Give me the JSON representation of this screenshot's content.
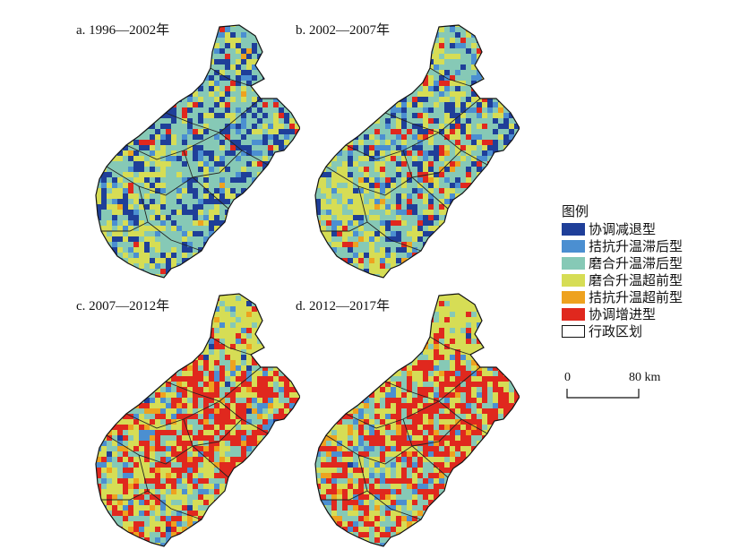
{
  "panels": [
    {
      "label": "a. 1996—2002年",
      "palette": [
        "#1f3f99",
        "#4b8fd1",
        "#86c9b6",
        "#d6dd55",
        "#eea21f",
        "#e0281e"
      ],
      "weights": [
        0.25,
        0.08,
        0.45,
        0.18,
        0.01,
        0.03
      ]
    },
    {
      "label": "b. 2002—2007年",
      "palette": [
        "#1f3f99",
        "#4b8fd1",
        "#86c9b6",
        "#d6dd55",
        "#eea21f",
        "#e0281e"
      ],
      "weights": [
        0.18,
        0.1,
        0.4,
        0.22,
        0.02,
        0.08
      ]
    },
    {
      "label": "c. 2007—2012年",
      "palette": [
        "#1f3f99",
        "#4b8fd1",
        "#86c9b6",
        "#d6dd55",
        "#eea21f",
        "#e0281e"
      ],
      "weights": [
        0.01,
        0.1,
        0.25,
        0.32,
        0.06,
        0.26
      ]
    },
    {
      "label": "d. 2012—2017年",
      "palette": [
        "#1f3f99",
        "#4b8fd1",
        "#86c9b6",
        "#d6dd55",
        "#eea21f",
        "#e0281e"
      ],
      "weights": [
        0.01,
        0.1,
        0.26,
        0.3,
        0.06,
        0.27
      ]
    }
  ],
  "legend": {
    "title": "图例",
    "items": [
      {
        "label": "协调减退型",
        "color": "#1f3f99"
      },
      {
        "label": "拮抗升温滞后型",
        "color": "#4b8fd1"
      },
      {
        "label": "磨合升温滞后型",
        "color": "#86c9b6"
      },
      {
        "label": "磨合升温超前型",
        "color": "#d6dd55"
      },
      {
        "label": "拮抗升温超前型",
        "color": "#eea21f"
      },
      {
        "label": "协调增进型",
        "color": "#e0281e"
      },
      {
        "label": "行政区划",
        "color": "#ffffff"
      }
    ]
  },
  "scalebar": {
    "zero": "0",
    "end": "80 km"
  }
}
